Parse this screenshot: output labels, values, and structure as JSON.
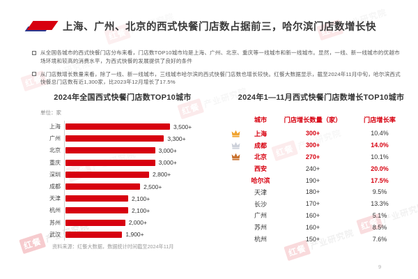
{
  "page": {
    "page_number": "9"
  },
  "header": {
    "title": "上海、广州、北京的西式快餐门店数占据前三，哈尔滨门店数增长快"
  },
  "bullets": [
    "从全国各城市的西式快餐门店分布来看，门店数TOP10城市均是上海、广州、北京、重庆等一线城市和新一线城市。显然，一线、新一线城市的优越市场环境和较高的消费水平，为西式快餐的发展提供了良好的条件",
    "从门店数增长数量来看，除了一线、新一线城市，三线城市哈尔滨的西式快餐门店数也增长较快。红餐大数据显示，截至2024年11月中旬，哈尔滨西式快餐总门店数有近1,300家，比2023年12月增长了17.5%"
  ],
  "chart_data": {
    "type": "bar",
    "title": "2024年全国西式快餐门店数TOP10城市",
    "unit_label": "单位：家",
    "categories": [
      "上海",
      "广州",
      "北京",
      "重庆",
      "深圳",
      "成都",
      "天津",
      "杭州",
      "苏州",
      "武汉"
    ],
    "values": [
      3500,
      3300,
      3000,
      3000,
      2800,
      2500,
      2100,
      2100,
      2000,
      1900
    ],
    "value_labels": [
      "3,500+",
      "3,300+",
      "3,000+",
      "3,000+",
      "2,800+",
      "2,500+",
      "2,100+",
      "2,100+",
      "2,000+",
      "1,900+"
    ],
    "xlim": [
      0,
      3500
    ],
    "bar_color": "#d7000f",
    "source": "资料来源：红餐大数据，数据统计时间截至2024年11月"
  },
  "table": {
    "title": "2024年1—11月西式快餐门店数增长TOP10城市",
    "columns": [
      "城市",
      "门店增长数量（家）",
      "门店增长率"
    ],
    "crown_colors": {
      "gold": "#f0a32f",
      "silver": "#cdd1da",
      "bronze": "#c9722e"
    },
    "rows": [
      {
        "city": "上海",
        "growth": "300+",
        "rate": "10.4%",
        "crown": "gold",
        "city_red": true,
        "growth_red": true,
        "rate_red": false
      },
      {
        "city": "成都",
        "growth": "300+",
        "rate": "14.0%",
        "crown": "silver",
        "city_red": true,
        "growth_red": true,
        "rate_red": true
      },
      {
        "city": "北京",
        "growth": "270+",
        "rate": "10.1%",
        "crown": "bronze",
        "city_red": true,
        "growth_red": true,
        "rate_red": false
      },
      {
        "city": "西安",
        "growth": "240+",
        "rate": "20.0%",
        "crown": null,
        "city_red": true,
        "growth_red": false,
        "rate_red": true
      },
      {
        "city": "哈尔滨",
        "growth": "190+",
        "rate": "17.5%",
        "crown": null,
        "city_red": true,
        "growth_red": false,
        "rate_red": true
      },
      {
        "city": "天津",
        "growth": "180+",
        "rate": "9.5%",
        "crown": null,
        "city_red": false,
        "growth_red": false,
        "rate_red": false
      },
      {
        "city": "长沙",
        "growth": "170+",
        "rate": "13.3%",
        "crown": null,
        "city_red": false,
        "growth_red": false,
        "rate_red": false
      },
      {
        "city": "广州",
        "growth": "160+",
        "rate": "5.1%",
        "crown": null,
        "city_red": false,
        "growth_red": false,
        "rate_red": false
      },
      {
        "city": "苏州",
        "growth": "160+",
        "rate": "8.5%",
        "crown": null,
        "city_red": false,
        "growth_red": false,
        "rate_red": false
      },
      {
        "city": "杭州",
        "growth": "150+",
        "rate": "7.6%",
        "crown": null,
        "city_red": false,
        "growth_red": false,
        "rate_red": false
      }
    ]
  },
  "watermark": {
    "brand_red": "红餐",
    "brand_gray": "产业研究院"
  }
}
